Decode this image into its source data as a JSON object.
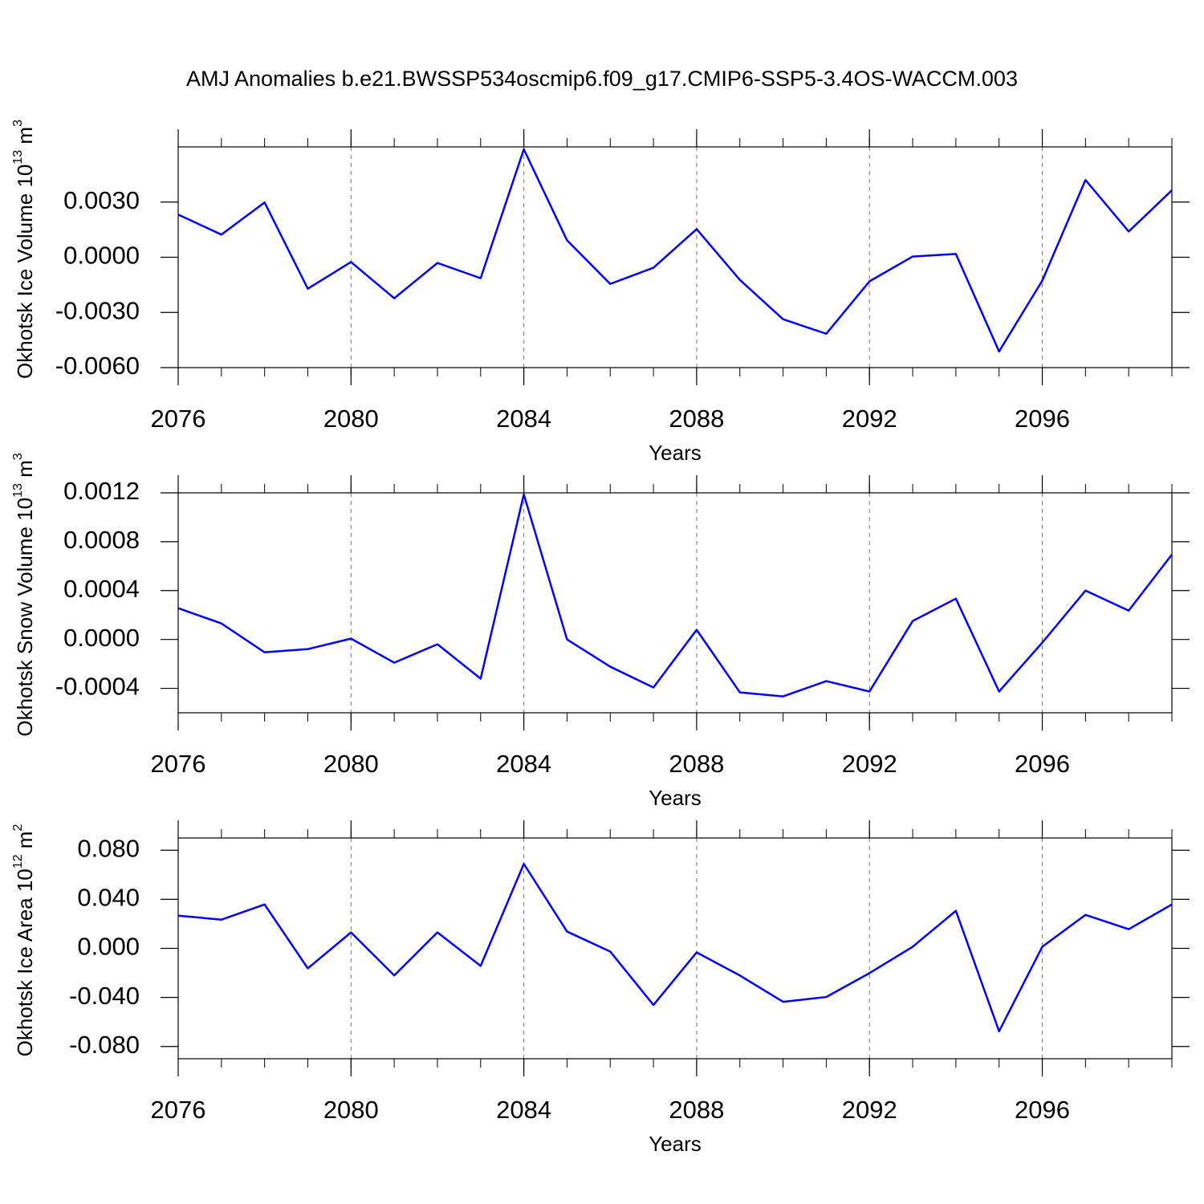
{
  "title": "AMJ Anomalies b.e21.BWSSP534oscmip6.f09_g17.CMIP6-SSP5-3.4OS-WACCM.003",
  "chart_data": [
    {
      "type": "line",
      "xlabel": "Years",
      "ylabel": [
        "Okhotsk Ice Volume 10",
        "13",
        " m",
        "3"
      ],
      "x": [
        2076,
        2077,
        2078,
        2079,
        2080,
        2081,
        2082,
        2083,
        2084,
        2085,
        2086,
        2087,
        2088,
        2089,
        2090,
        2091,
        2092,
        2093,
        2094,
        2095,
        2096,
        2097,
        2098,
        2099
      ],
      "series": [
        {
          "color": "#0000ff",
          "values": [
            0.00232,
            0.00123,
            0.00298,
            -0.00171,
            -0.00026,
            -0.00223,
            -0.00031,
            -0.00114,
            0.00587,
            0.00092,
            -0.00145,
            -0.00057,
            0.00153,
            -0.00123,
            -0.00337,
            -0.00416,
            -0.00131,
            4e-05,
            0.00018,
            -0.00512,
            -0.00127,
            0.0042,
            0.0014,
            0.00364
          ]
        }
      ],
      "xlim": [
        2076,
        2099
      ],
      "xticks": [
        2076,
        2080,
        2084,
        2088,
        2092,
        2096
      ],
      "ylim": [
        -0.006,
        0.006
      ],
      "yticks": [
        {
          "value": -0.006,
          "label": "-0.0060"
        },
        {
          "value": -0.003,
          "label": "-0.0030"
        },
        {
          "value": 0,
          "label": "0.0000"
        },
        {
          "value": 0.003,
          "label": "0.0030"
        }
      ],
      "grid": true
    },
    {
      "type": "line",
      "xlabel": "Years",
      "ylabel": [
        "Okhotsk Snow Volume 10",
        "13",
        " m",
        "3"
      ],
      "x": [
        2076,
        2077,
        2078,
        2079,
        2080,
        2081,
        2082,
        2083,
        2084,
        2085,
        2086,
        2087,
        2088,
        2089,
        2090,
        2091,
        2092,
        2093,
        2094,
        2095,
        2096,
        2097,
        2098,
        2099
      ],
      "series": [
        {
          "color": "#0000ff",
          "values": [
            0.000256,
            0.000131,
            -0.000105,
            -7.9e-05,
            7e-06,
            -0.00019,
            -3.9e-05,
            -0.000321,
            0.001187,
            0.0,
            -0.000223,
            -0.000393,
            7.9e-05,
            -0.000433,
            -0.000466,
            -0.000341,
            -0.000426,
            0.000151,
            0.000334,
            -0.000426,
            -2.6e-05,
            0.0004,
            0.000236,
            0.000695
          ]
        }
      ],
      "xlim": [
        2076,
        2099
      ],
      "xticks": [
        2076,
        2080,
        2084,
        2088,
        2092,
        2096
      ],
      "ylim": [
        -0.0006,
        0.0012
      ],
      "yticks": [
        {
          "value": -0.0004,
          "label": "-0.0004"
        },
        {
          "value": 0,
          "label": "0.0000"
        },
        {
          "value": 0.0004,
          "label": "0.0004"
        },
        {
          "value": 0.0008,
          "label": "0.0008"
        },
        {
          "value": 0.0012,
          "label": "0.0012"
        }
      ],
      "grid": true
    },
    {
      "type": "line",
      "xlabel": "Years",
      "ylabel": [
        "Okhotsk Ice Area 10",
        "12",
        " m",
        "2"
      ],
      "x": [
        2076,
        2077,
        2078,
        2079,
        2080,
        2081,
        2082,
        2083,
        2084,
        2085,
        2086,
        2087,
        2088,
        2089,
        2090,
        2091,
        2092,
        2093,
        2094,
        2095,
        2096,
        2097,
        2098,
        2099
      ],
      "series": [
        {
          "color": "#0000ff",
          "values": [
            0.0267,
            0.0234,
            0.0358,
            -0.0163,
            0.013,
            -0.0221,
            0.013,
            -0.0143,
            0.0689,
            0.0137,
            -0.0026,
            -0.0462,
            -0.0033,
            -0.0221,
            -0.0436,
            -0.0397,
            -0.0202,
            0.0013,
            0.0306,
            -0.0676,
            0.0013,
            0.0273,
            0.0156,
            0.0358
          ]
        }
      ],
      "xlim": [
        2076,
        2099
      ],
      "xticks": [
        2076,
        2080,
        2084,
        2088,
        2092,
        2096
      ],
      "ylim": [
        -0.09,
        0.09
      ],
      "yticks": [
        {
          "value": -0.08,
          "label": "-0.080"
        },
        {
          "value": -0.04,
          "label": "-0.040"
        },
        {
          "value": 0,
          "label": "0.000"
        },
        {
          "value": 0.04,
          "label": "0.040"
        },
        {
          "value": 0.08,
          "label": "0.080"
        }
      ],
      "grid": true
    }
  ]
}
